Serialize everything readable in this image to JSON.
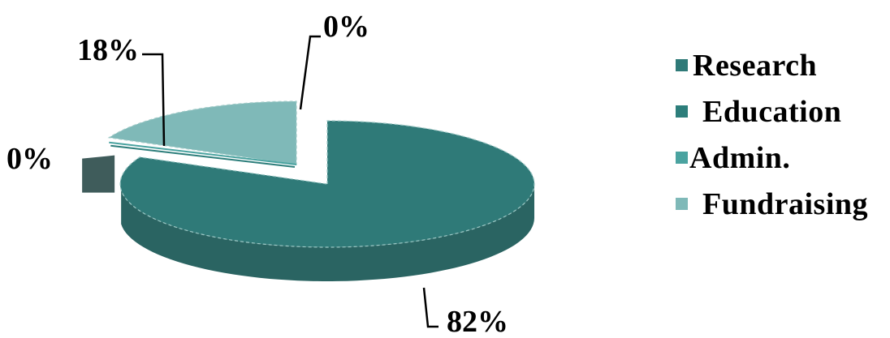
{
  "chart_data": {
    "type": "pie",
    "style": "3d-exploded",
    "categories": [
      "Research",
      "Education",
      "Admin.",
      "Fundraising"
    ],
    "values": [
      82,
      0,
      0,
      18
    ],
    "unit": "%",
    "data_labels": [
      "82%",
      "0%",
      "0%",
      "18%"
    ],
    "legend": {
      "placement": "right",
      "entries": [
        "Research",
        "Education",
        "Admin.",
        "Fundraising"
      ]
    },
    "colors": {
      "research": "#2f7a78",
      "research_side": "#2a6462",
      "education": "#2d7e7b",
      "admin": "#4aa3a0",
      "fundraising": "#7fb9b8",
      "fundraising_side": "#3f5c5b",
      "edge_line": "#9ec9c6"
    }
  }
}
